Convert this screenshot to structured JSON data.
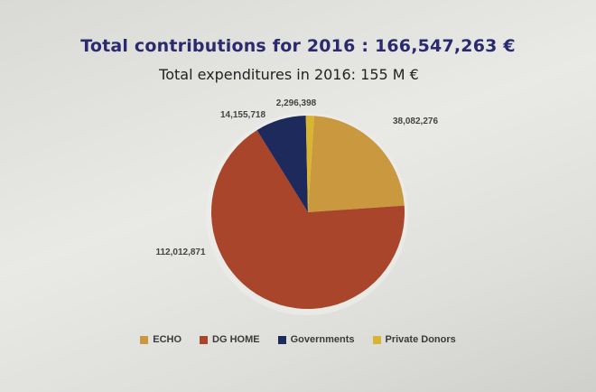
{
  "chart_data": {
    "type": "pie",
    "title": "Total contributions for 2016 : 166,547,263 €",
    "subtitle": "Total expenditures in 2016: 155 M €",
    "slices": [
      {
        "name": "ECHO",
        "value": 38082276,
        "label": "38,082,276",
        "color": "#c9983f"
      },
      {
        "name": "DG HOME",
        "value": 112012871,
        "label": "112,012,871",
        "color": "#a8452a"
      },
      {
        "name": "Governments",
        "value": 14155718,
        "label": "14,155,718",
        "color": "#1f2a5c"
      },
      {
        "name": "Private Donors",
        "value": 2296398,
        "label": "2,296,398",
        "color": "#d8b530"
      }
    ],
    "legend_position": "bottom"
  }
}
